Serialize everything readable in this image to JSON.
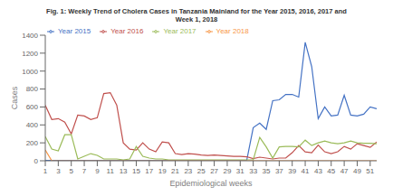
{
  "chart_data": {
    "type": "line",
    "title": "Fig. 1: Weekly Trend of Cholera Cases in Tanzania Mainland for the Year 2015, 2016, 2017 and\nWeek 1, 2018",
    "xlabel": "Epidemiological weeks",
    "ylabel": "Cases",
    "x": [
      1,
      2,
      3,
      4,
      5,
      6,
      7,
      8,
      9,
      10,
      11,
      12,
      13,
      14,
      15,
      16,
      17,
      18,
      19,
      20,
      21,
      22,
      23,
      24,
      25,
      26,
      27,
      28,
      29,
      30,
      31,
      32,
      33,
      34,
      35,
      36,
      37,
      38,
      39,
      40,
      41,
      42,
      43,
      44,
      45,
      46,
      47,
      48,
      49,
      50,
      51,
      52
    ],
    "series": [
      {
        "name": "Year 2015",
        "color": "#4472C4",
        "values": [
          5,
          5,
          5,
          5,
          5,
          5,
          5,
          5,
          5,
          5,
          5,
          5,
          5,
          5,
          5,
          5,
          5,
          5,
          5,
          5,
          5,
          5,
          5,
          5,
          5,
          5,
          5,
          5,
          5,
          5,
          5,
          5,
          370,
          420,
          350,
          670,
          680,
          740,
          740,
          710,
          1320,
          1050,
          470,
          600,
          500,
          510,
          730,
          510,
          500,
          520,
          600,
          580
        ]
      },
      {
        "name": "Year 2016",
        "color": "#C0504D",
        "values": [
          620,
          460,
          470,
          430,
          300,
          510,
          500,
          460,
          480,
          750,
          760,
          620,
          200,
          130,
          120,
          200,
          130,
          100,
          210,
          200,
          80,
          70,
          80,
          75,
          65,
          60,
          65,
          60,
          55,
          50,
          50,
          45,
          25,
          40,
          30,
          20,
          30,
          30,
          90,
          170,
          100,
          90,
          175,
          100,
          80,
          100,
          160,
          130,
          190,
          170,
          150,
          210
        ]
      },
      {
        "name": "Year 2017",
        "color": "#9BBB59",
        "values": [
          270,
          130,
          110,
          290,
          290,
          20,
          50,
          80,
          60,
          20,
          20,
          20,
          10,
          20,
          160,
          50,
          30,
          20,
          20,
          10,
          10,
          10,
          10,
          10,
          10,
          10,
          10,
          10,
          10,
          10,
          10,
          10,
          10,
          260,
          155,
          30,
          155,
          160,
          160,
          155,
          230,
          170,
          200,
          220,
          200,
          190,
          200,
          220,
          200,
          195,
          195,
          190
        ]
      },
      {
        "name": "Year 2018",
        "color": "#F79646",
        "values": [
          120,
          0,
          0,
          0,
          0,
          0,
          0,
          0,
          0,
          0,
          0,
          0,
          0,
          0,
          0,
          0,
          0,
          0,
          0,
          0,
          0,
          0,
          0,
          0,
          0,
          0,
          0,
          0,
          0,
          0,
          0,
          0,
          0,
          0,
          0,
          0,
          0,
          0,
          0,
          0,
          0,
          0,
          0,
          0,
          0,
          0,
          0,
          0,
          0,
          0,
          0,
          0
        ]
      }
    ],
    "xlim": [
      1,
      52
    ],
    "ylim": [
      0,
      1400
    ],
    "xticks": [
      1,
      3,
      5,
      7,
      9,
      11,
      13,
      15,
      17,
      19,
      21,
      23,
      25,
      27,
      29,
      31,
      33,
      35,
      37,
      39,
      41,
      43,
      45,
      47,
      49,
      51
    ],
    "yticks": [
      0,
      200,
      400,
      600,
      800,
      1000,
      1200,
      1400
    ],
    "legend": "upper left",
    "grid": false
  }
}
